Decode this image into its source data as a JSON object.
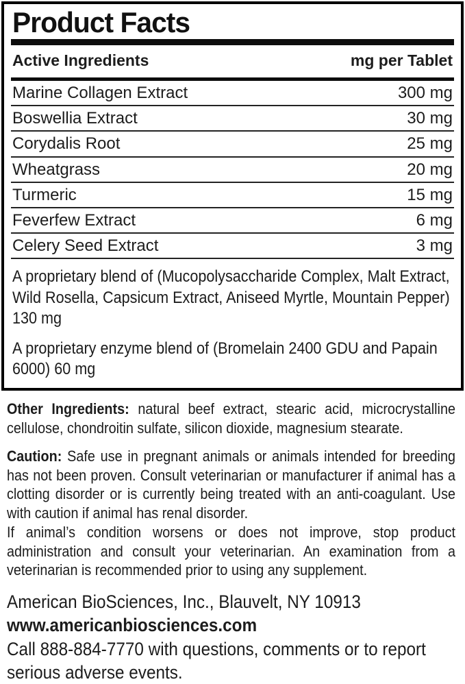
{
  "panel": {
    "title": "Product Facts",
    "header": {
      "left": "Active Ingredients",
      "right": "mg per Tablet"
    },
    "ingredients": [
      {
        "name": "Marine Collagen Extract",
        "amount": "300 mg"
      },
      {
        "name": "Boswellia Extract",
        "amount": "30 mg"
      },
      {
        "name": "Corydalis Root",
        "amount": "25 mg"
      },
      {
        "name": "Wheatgrass",
        "amount": "20 mg"
      },
      {
        "name": "Turmeric",
        "amount": "15 mg"
      },
      {
        "name": "Feverfew Extract",
        "amount": "6 mg"
      },
      {
        "name": "Celery Seed Extract",
        "amount": "3 mg"
      }
    ],
    "blends": [
      "A proprietary blend of (Mucopolysaccharide Complex, Malt Extract, Wild Rosella, Capsicum Extract, Aniseed Myrtle, Mountain Pepper) 130 mg",
      "A proprietary enzyme blend of (Bromelain 2400 GDU and Papain 6000) 60 mg"
    ]
  },
  "other_ingredients": {
    "label": "Other Ingredients:",
    "text": "natural beef extract, stearic acid, microcrystalline cellulose, chondroitin sulfate, silicon dioxide, magnesium stearate."
  },
  "caution": {
    "label": "Caution:",
    "text": "Safe use in pregnant animals or animals intended for breeding has not been proven. Consult veterinarian or manufacturer if animal has a clotting disorder or is currently being treated with an anti-coagulant. Use with caution if animal has renal disorder.",
    "text2": "If animal’s condition worsens or does not improve, stop product administration and consult your veterinarian. An examination from a veterinarian is recommended prior to using any supplement."
  },
  "footer": {
    "company": "American BioSciences, Inc., Blauvelt, NY 10913",
    "website": "www.americanbiosciences.com",
    "contact": "Call 888-884-7770 with questions, comments or to report serious adverse events."
  },
  "colors": {
    "text": "#1c1c1c",
    "border": "#000000",
    "divider": "#0d0d0d",
    "background": "#ffffff"
  }
}
